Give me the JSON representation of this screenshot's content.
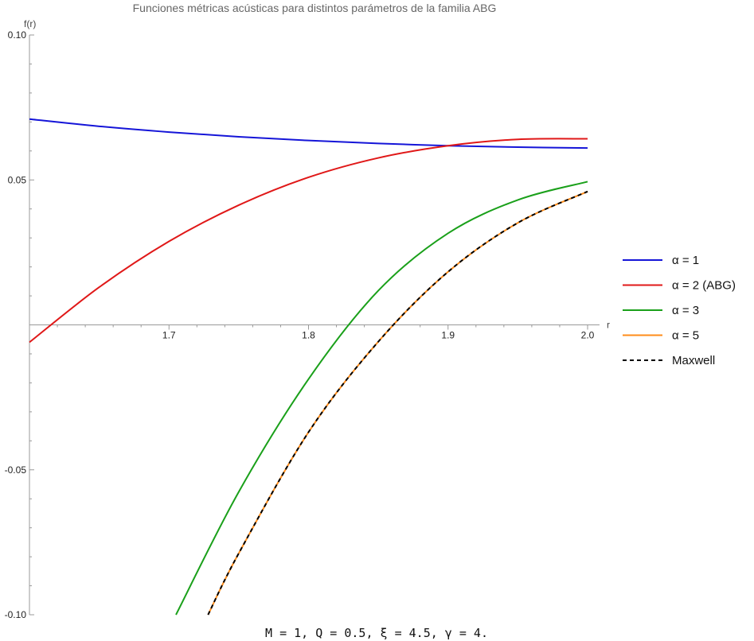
{
  "chart_data": {
    "type": "line",
    "title": "Funciones métricas acústicas para distintos parámetros de la familia ABG",
    "xlabel": "r",
    "ylabel": "f(r)",
    "xlim": [
      1.6,
      2.0
    ],
    "ylim": [
      -0.1,
      0.1
    ],
    "x_ticks": [
      1.7,
      1.8,
      1.9,
      2.0
    ],
    "x_tick_labels": [
      "1.7",
      "1.8",
      "1.9",
      "2.0"
    ],
    "y_ticks": [
      0.1,
      0.05,
      -0.05,
      -0.1
    ],
    "y_tick_labels": [
      "0.10",
      "0.05",
      "-0.05",
      "-0.10"
    ],
    "grid": false,
    "legend_position": "right",
    "parameters_caption": "M = 1, Q = 0.5, ξ = 4.5, γ = 4.",
    "series": [
      {
        "name": "α = 1",
        "color": "#1515d8",
        "dash": "solid",
        "x": [
          1.6,
          1.65,
          1.7,
          1.75,
          1.8,
          1.85,
          1.9,
          1.95,
          2.0
        ],
        "y": [
          0.071,
          0.0685,
          0.0665,
          0.0649,
          0.0636,
          0.0626,
          0.0618,
          0.0613,
          0.061
        ]
      },
      {
        "name": "α = 2 (ABG)",
        "color": "#e01818",
        "dash": "solid",
        "x": [
          1.6,
          1.65,
          1.7,
          1.75,
          1.8,
          1.85,
          1.9,
          1.95,
          2.0
        ],
        "y": [
          -0.006,
          0.013,
          0.0288,
          0.0413,
          0.0509,
          0.0576,
          0.0618,
          0.064,
          0.0642
        ]
      },
      {
        "name": "α = 3",
        "color": "#1aa01a",
        "dash": "solid",
        "x": [
          1.705,
          1.75,
          1.8,
          1.85,
          1.9,
          1.95,
          2.0
        ],
        "y": [
          -0.1,
          -0.0576,
          -0.0187,
          0.0118,
          0.0316,
          0.0431,
          0.0494
        ]
      },
      {
        "name": "α = 5",
        "color": "#ff8c1a",
        "dash": "solid",
        "x": [
          1.728,
          1.75,
          1.8,
          1.85,
          1.9,
          1.95,
          2.0
        ],
        "y": [
          -0.1,
          -0.0788,
          -0.037,
          -0.0058,
          0.0183,
          0.0352,
          0.046
        ]
      },
      {
        "name": "Maxwell",
        "color": "#000000",
        "dash": "dashed",
        "x": [
          1.728,
          1.75,
          1.8,
          1.85,
          1.9,
          1.95,
          2.0
        ],
        "y": [
          -0.1,
          -0.0788,
          -0.037,
          -0.0058,
          0.0183,
          0.0352,
          0.046
        ]
      }
    ]
  }
}
